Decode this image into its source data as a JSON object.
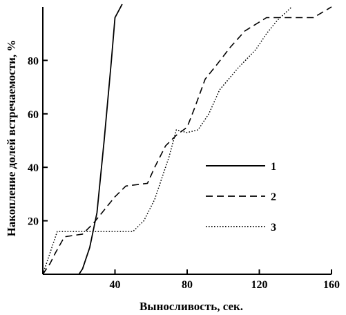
{
  "chart_data": {
    "type": "line",
    "xlabel": "Выносливость,  сек.",
    "ylabel": "Накопление долей встречаемости,  %",
    "xlim": [
      0,
      160
    ],
    "ylim": [
      0,
      100
    ],
    "x_ticks": [
      40,
      80,
      120,
      160
    ],
    "y_ticks": [
      20,
      40,
      60,
      80
    ],
    "grid": false,
    "legend_position": "center-right",
    "series": [
      {
        "name": "1",
        "style": "solid",
        "points": [
          [
            20,
            0
          ],
          [
            22,
            2
          ],
          [
            26,
            10
          ],
          [
            30,
            23
          ],
          [
            34,
            50
          ],
          [
            38,
            80
          ],
          [
            40,
            96
          ],
          [
            44,
            101
          ]
        ]
      },
      {
        "name": "2",
        "style": "dashed",
        "points": [
          [
            0,
            0
          ],
          [
            4,
            4
          ],
          [
            7,
            8
          ],
          [
            12,
            14
          ],
          [
            22,
            15
          ],
          [
            28,
            19
          ],
          [
            34,
            24
          ],
          [
            40,
            29
          ],
          [
            46,
            33
          ],
          [
            58,
            34
          ],
          [
            62,
            40
          ],
          [
            68,
            48
          ],
          [
            74,
            52
          ],
          [
            80,
            55
          ],
          [
            84,
            62
          ],
          [
            90,
            73
          ],
          [
            96,
            78
          ],
          [
            104,
            85
          ],
          [
            112,
            91
          ],
          [
            124,
            96
          ],
          [
            134,
            96
          ],
          [
            150,
            96
          ],
          [
            160,
            100
          ]
        ]
      },
      {
        "name": "3",
        "style": "dotted",
        "points": [
          [
            0,
            0
          ],
          [
            4,
            8
          ],
          [
            8,
            16
          ],
          [
            14,
            16
          ],
          [
            20,
            16
          ],
          [
            28,
            16
          ],
          [
            34,
            16
          ],
          [
            42,
            16
          ],
          [
            50,
            16
          ],
          [
            56,
            20
          ],
          [
            62,
            28
          ],
          [
            66,
            36
          ],
          [
            70,
            44
          ],
          [
            74,
            54
          ],
          [
            80,
            53
          ],
          [
            86,
            54
          ],
          [
            92,
            60
          ],
          [
            98,
            69
          ],
          [
            108,
            77
          ],
          [
            118,
            84
          ],
          [
            124,
            90
          ],
          [
            130,
            95
          ],
          [
            138,
            100
          ]
        ]
      }
    ]
  }
}
